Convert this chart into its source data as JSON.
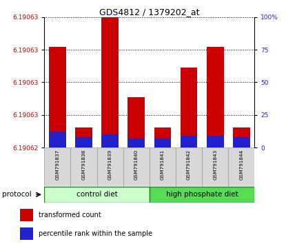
{
  "title": "GDS4812 / 1379202_at",
  "samples": [
    "GSM791837",
    "GSM791838",
    "GSM791839",
    "GSM791840",
    "GSM791841",
    "GSM791842",
    "GSM791843",
    "GSM791844"
  ],
  "transformed_count": [
    6.19063,
    6.190622,
    6.190633,
    6.190625,
    6.190622,
    6.190628,
    6.19063,
    6.190622
  ],
  "percentile_rank": [
    12,
    8,
    10,
    7,
    7,
    9,
    9,
    8
  ],
  "y_min": 6.19062,
  "y_max_data": 6.190635,
  "y_axis_top": 6.190633,
  "bar_color_red": "#cc0000",
  "bar_color_blue": "#2222cc",
  "left_tick_labels": [
    "6.19062",
    "6.19063",
    "6.19063",
    "6.19063",
    "6.19063"
  ],
  "right_tick_labels": [
    "0",
    "25",
    "50",
    "75",
    "100%"
  ],
  "tick_color_left": "#cc0000",
  "tick_color_right": "#2222cc",
  "plot_bg": "#ffffff",
  "ctrl_color_light": "#ccffcc",
  "hp_color_dark": "#55dd55",
  "group_border": "#228822",
  "sample_bg": "#d0d0d0",
  "figure_bg": "#ffffff"
}
